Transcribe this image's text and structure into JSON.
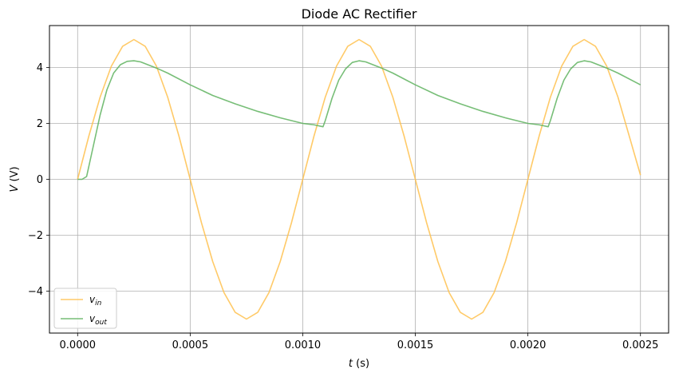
{
  "chart_data": {
    "type": "line",
    "title": "Diode AC Rectifier",
    "xlabel": "t (s)",
    "ylabel": "V (V)",
    "xlim": [
      -0.000125,
      0.002625
    ],
    "ylim": [
      -5.5,
      5.5
    ],
    "xticks": [
      0.0,
      0.0005,
      0.001,
      0.0015,
      0.002,
      0.0025
    ],
    "xtick_labels": [
      "0.0000",
      "0.0005",
      "0.0010",
      "0.0015",
      "0.0020",
      "0.0025"
    ],
    "yticks": [
      -4,
      -2,
      0,
      2,
      4
    ],
    "ytick_labels": [
      "−4",
      "−2",
      "0",
      "2",
      "4"
    ],
    "grid": true,
    "legend_position": "lower-left",
    "series": [
      {
        "name": "v_in",
        "color": "#ffc14d",
        "x": [
          0.0,
          5e-05,
          0.0001,
          0.00015,
          0.0002,
          0.00025,
          0.0003,
          0.00035,
          0.0004,
          0.00045,
          0.0005,
          0.00055,
          0.0006,
          0.00065,
          0.0007,
          0.00075,
          0.0008,
          0.00085,
          0.0009,
          0.00095,
          0.001,
          0.00105,
          0.0011,
          0.00115,
          0.0012,
          0.00125,
          0.0013,
          0.00135,
          0.0014,
          0.00145,
          0.0015,
          0.00155,
          0.0016,
          0.00165,
          0.0017,
          0.00175,
          0.0018,
          0.00185,
          0.0019,
          0.00195,
          0.002,
          0.00205,
          0.0021,
          0.00215,
          0.0022,
          0.00225,
          0.0023,
          0.00235,
          0.0024,
          0.00245,
          0.0025
        ],
        "y": [
          0.0,
          1.55,
          2.94,
          4.05,
          4.76,
          5.0,
          4.76,
          4.05,
          2.94,
          1.55,
          0.0,
          -1.55,
          -2.94,
          -4.05,
          -4.76,
          -5.0,
          -4.76,
          -4.05,
          -2.94,
          -1.55,
          0.0,
          1.55,
          2.94,
          4.05,
          4.76,
          5.0,
          4.76,
          4.05,
          2.94,
          1.55,
          0.0,
          -1.55,
          -2.94,
          -4.05,
          -4.76,
          -5.0,
          -4.76,
          -4.05,
          -2.94,
          -1.55,
          0.0,
          1.55,
          2.94,
          4.05,
          4.76,
          5.0,
          4.76,
          4.05,
          2.94,
          1.55,
          0.15
        ]
      },
      {
        "name": "v_out",
        "color": "#5fb35f",
        "x": [
          0.0,
          2e-05,
          4e-05,
          7e-05,
          0.0001,
          0.00013,
          0.00016,
          0.00019,
          0.00022,
          0.00025,
          0.00028,
          0.00035,
          0.0004,
          0.0005,
          0.0006,
          0.0007,
          0.0008,
          0.0009,
          0.001,
          0.00105,
          0.00109,
          0.0011,
          0.00113,
          0.00116,
          0.00119,
          0.00122,
          0.00125,
          0.00128,
          0.00135,
          0.0014,
          0.0015,
          0.0016,
          0.0017,
          0.0018,
          0.0019,
          0.002,
          0.00205,
          0.00209,
          0.0021,
          0.00213,
          0.00216,
          0.00219,
          0.00222,
          0.00225,
          0.00228,
          0.00235,
          0.0024,
          0.0025
        ],
        "y": [
          0.0,
          0.0,
          0.1,
          1.2,
          2.3,
          3.2,
          3.8,
          4.1,
          4.22,
          4.24,
          4.2,
          3.98,
          3.8,
          3.38,
          3.0,
          2.7,
          2.43,
          2.2,
          2.0,
          1.95,
          1.88,
          2.1,
          2.9,
          3.55,
          3.95,
          4.18,
          4.24,
          4.2,
          3.98,
          3.8,
          3.38,
          3.0,
          2.7,
          2.43,
          2.2,
          2.0,
          1.95,
          1.88,
          2.1,
          2.9,
          3.55,
          3.95,
          4.18,
          4.24,
          4.2,
          3.98,
          3.8,
          3.38
        ]
      }
    ]
  }
}
